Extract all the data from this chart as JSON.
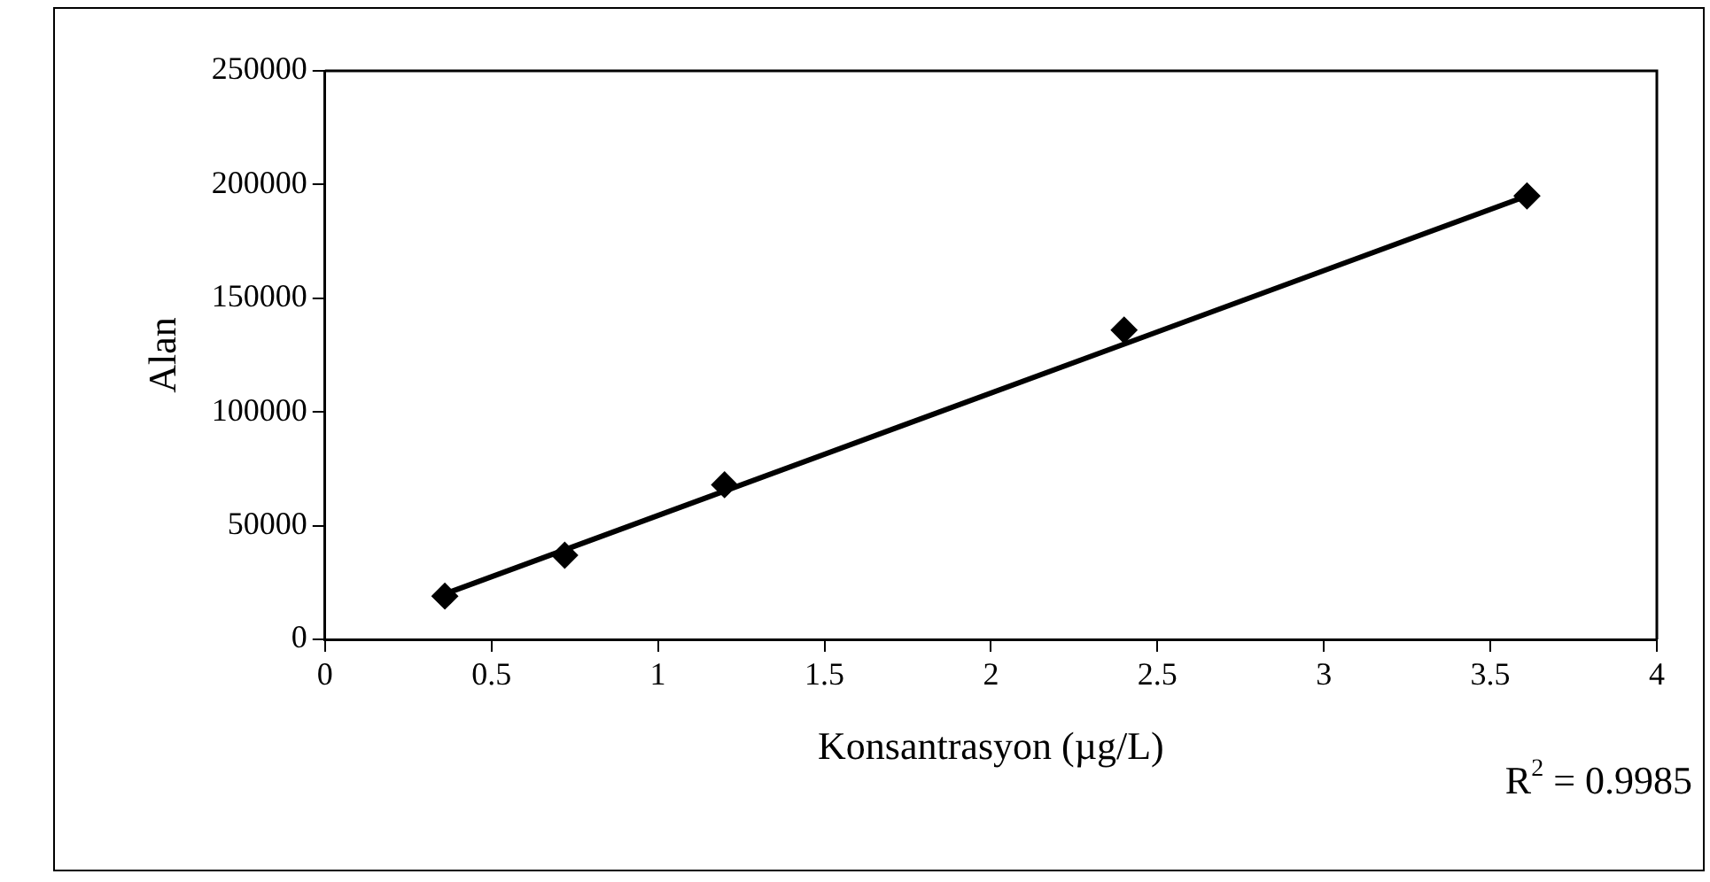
{
  "chart_data": {
    "type": "scatter",
    "xlabel": "Konsantrasyon (µg/L)",
    "ylabel": "Alan",
    "x": [
      0.36,
      0.72,
      1.2,
      2.4,
      3.61
    ],
    "series": [
      {
        "color": "#000000",
        "marker": "diamond",
        "values": [
          19000,
          37000,
          68000,
          136000,
          195000
        ]
      },
      {
        "type": "line",
        "color": "#000000",
        "marker": "none",
        "x": [
          0.36,
          3.61
        ],
        "values": [
          20000,
          195000
        ]
      }
    ],
    "xlim": [
      0,
      4
    ],
    "xticks": [
      0,
      0.5,
      1,
      1.5,
      2,
      2.5,
      3,
      3.5,
      4
    ],
    "ylim": [
      0,
      250000
    ],
    "yticks": [
      0,
      50000,
      100000,
      150000,
      200000,
      250000
    ],
    "grid": false,
    "legend": false,
    "annotations": [
      "R$^{2}$ = 0.9985"
    ]
  }
}
